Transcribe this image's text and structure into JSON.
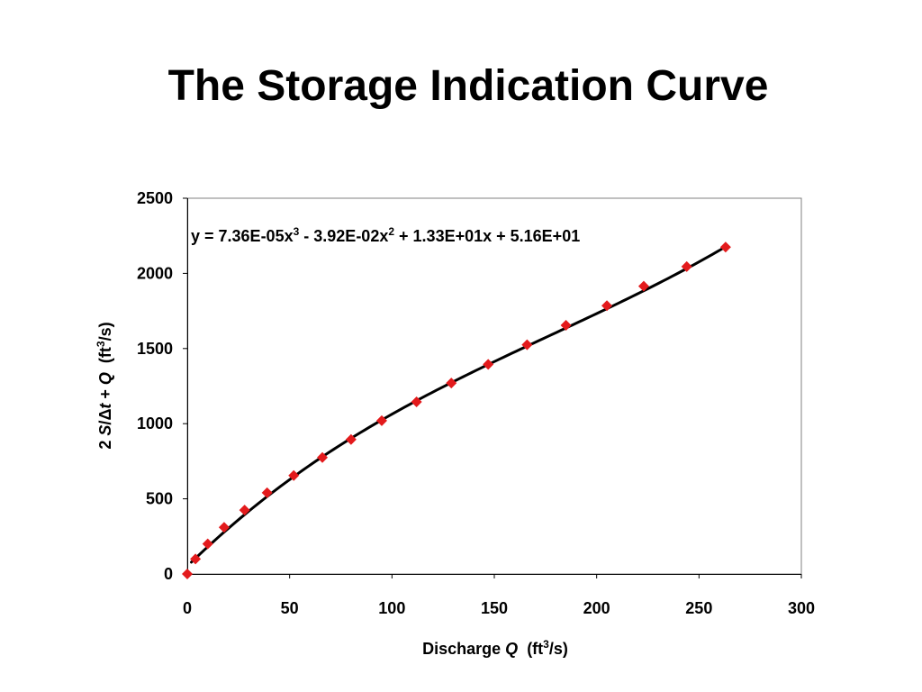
{
  "slide": {
    "title": "The Storage Indication Curve"
  },
  "chart_data": {
    "type": "scatter",
    "title": "",
    "xlabel": {
      "prefix": "Discharge ",
      "italic": "Q",
      "unit_pre": "  (ft",
      "unit_sup": "3",
      "unit_post": "/s)"
    },
    "ylabel": {
      "part1": "2 ",
      "part2_italic": "S",
      "part3": "/",
      "part4_symbol": "Δ",
      "part5_italic": "t",
      "part6": " + ",
      "part7_italic": "Q",
      "unit_pre": "  (ft",
      "unit_sup": "3",
      "unit_post": "/s)"
    },
    "xlim": [
      0,
      300
    ],
    "ylim": [
      0,
      2500
    ],
    "xticks": [
      0,
      50,
      100,
      150,
      200,
      250,
      300
    ],
    "yticks": [
      0,
      500,
      1000,
      1500,
      2000,
      2500
    ],
    "grid": false,
    "legend": "none",
    "equation": {
      "text1": "y = 7.36E-05x",
      "sup1": "3",
      "text2": " - 3.92E-02x",
      "sup2": "2",
      "text3": " + 1.33E+01x + 5.16E+01"
    },
    "trendline": {
      "type": "polynomial",
      "order": 3,
      "coefficients": [
        51.6,
        13.3,
        -0.0392,
        7.36e-05
      ],
      "x_range": [
        2,
        263
      ],
      "color": "#000000"
    },
    "series": [
      {
        "marker": "diamond",
        "color": "#e31a1c",
        "x": [
          0,
          4,
          10,
          18,
          28,
          39,
          52,
          66,
          80,
          95,
          112,
          129,
          147,
          166,
          185,
          205,
          223,
          244,
          263
        ],
        "y": [
          0,
          100,
          200,
          310,
          425,
          540,
          655,
          775,
          895,
          1020,
          1145,
          1270,
          1395,
          1525,
          1655,
          1785,
          1915,
          2045,
          2175
        ]
      }
    ]
  }
}
